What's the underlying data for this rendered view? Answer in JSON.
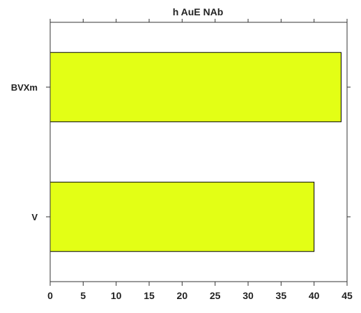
{
  "chart_data": {
    "type": "bar",
    "orientation": "horizontal",
    "title": "h AuE  NAb",
    "categories": [
      "BVXm",
      "V"
    ],
    "values": [
      44.1,
      40.0
    ],
    "xlabel": "",
    "ylabel": "",
    "xlim": [
      0,
      45
    ],
    "xticks": [
      0,
      5,
      10,
      15,
      20,
      25,
      30,
      35,
      40,
      45
    ],
    "grid": false,
    "legend": "none",
    "bar_color": "#e3ff15",
    "bar_edge_color": "#000000",
    "axis_color": "#333333"
  }
}
